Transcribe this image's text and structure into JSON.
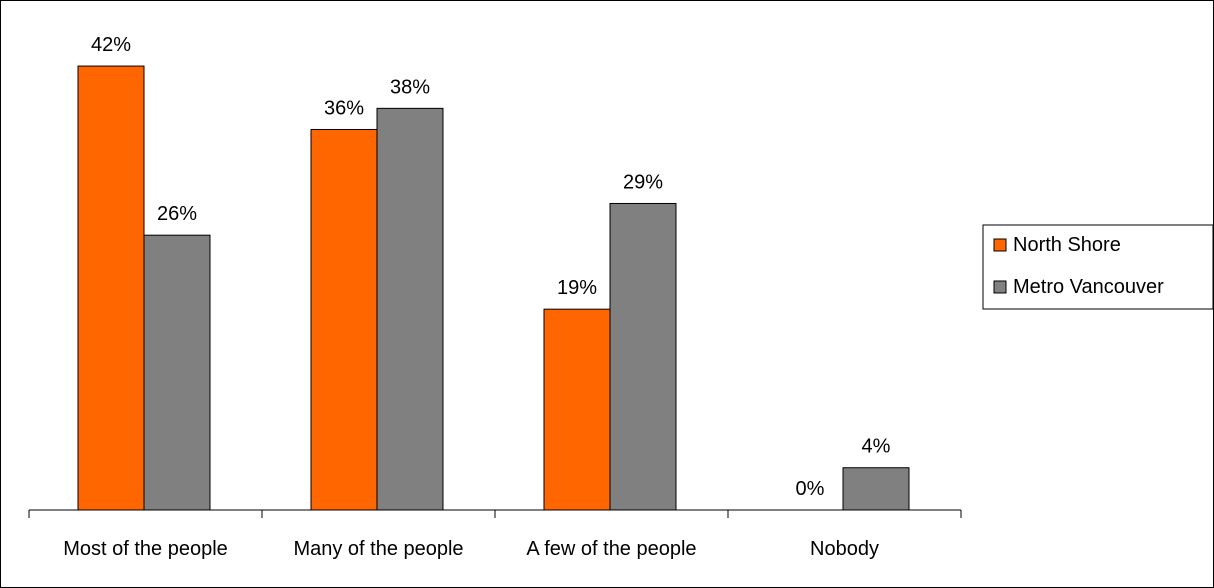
{
  "chart_data": {
    "type": "bar",
    "categories": [
      "Most of the people",
      "Many of the people",
      "A few of the people",
      "Nobody"
    ],
    "series": [
      {
        "name": "North Shore",
        "values": [
          42,
          36,
          19,
          0
        ],
        "color": "#ff6600"
      },
      {
        "name": "Metro Vancouver",
        "values": [
          26,
          38,
          29,
          4
        ],
        "color": "#808080"
      }
    ],
    "value_suffix": "%",
    "ylim": [
      0,
      45
    ],
    "grid": false,
    "y_axis_visible": false,
    "legend_position": "right"
  }
}
